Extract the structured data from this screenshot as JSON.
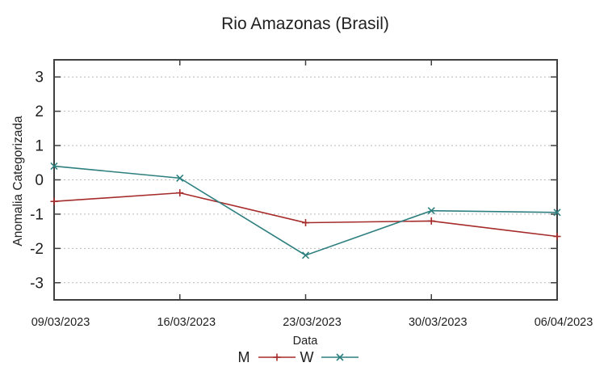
{
  "title": "Rio Amazonas (Brasil)",
  "chart_data": {
    "type": "line",
    "title": "Rio Amazonas (Brasil)",
    "xlabel": "Data",
    "ylabel": "Anomalia Categorizada",
    "categories": [
      "09/03/2023",
      "16/03/2023",
      "23/03/2023",
      "30/03/2023",
      "06/04/2023"
    ],
    "yticks": [
      3,
      2,
      1,
      0,
      -1,
      -2,
      -3
    ],
    "ylim": [
      -3.5,
      3.5
    ],
    "grid": "horizontal-dotted",
    "legend_position": "below-xlabel",
    "series": [
      {
        "name": "M",
        "color": "#a62b2b",
        "marker": "plus",
        "values": [
          -0.63,
          -0.38,
          -1.25,
          -1.2,
          -1.65
        ]
      },
      {
        "name": "W",
        "color": "#2e7f7f",
        "marker": "cross",
        "values": [
          0.4,
          0.05,
          -2.2,
          -0.9,
          -0.95
        ]
      }
    ]
  },
  "colors": {
    "border": "#404040",
    "gridline": "#b9b9b9",
    "text": "#1f1f1f",
    "background": "#ffffff"
  }
}
